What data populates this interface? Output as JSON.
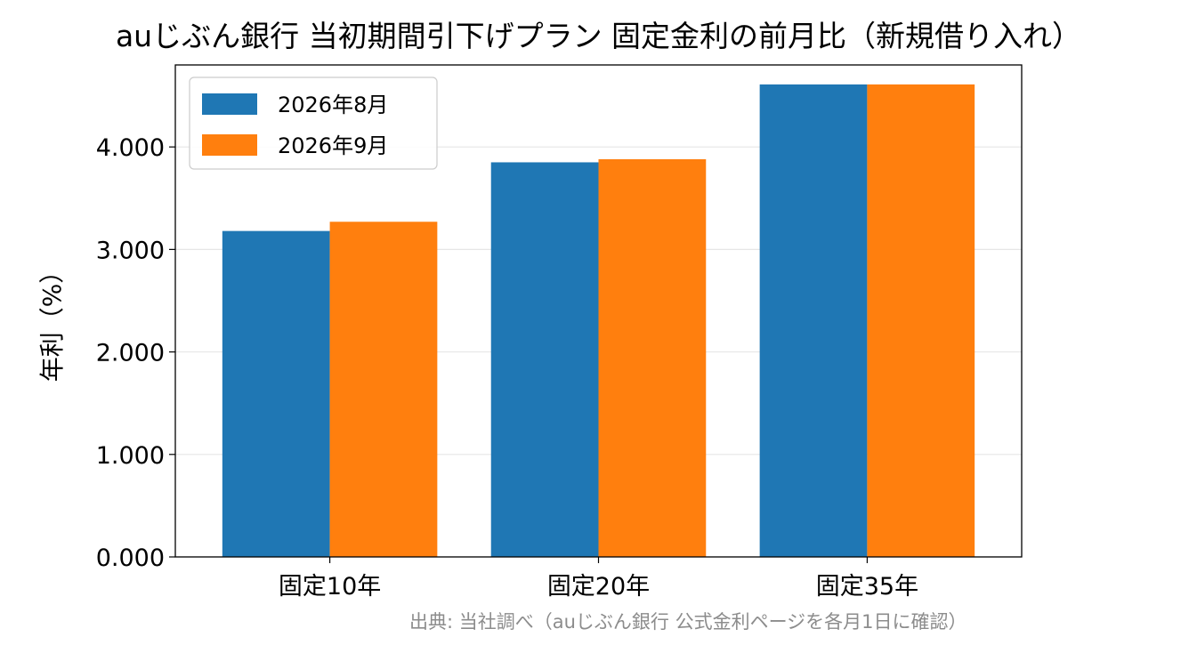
{
  "chart_data": {
    "type": "bar",
    "title": "auじぶん銀行 当初期間引下げプラン 固定金利の前月比（新規借り入れ）",
    "xlabel": "",
    "ylabel": "年利（%）",
    "categories": [
      "固定10年",
      "固定20年",
      "固定35年"
    ],
    "series": [
      {
        "name": "2026年8月",
        "color": "#1f77b4",
        "values": [
          3.18,
          3.85,
          4.61
        ]
      },
      {
        "name": "2026年9月",
        "color": "#ff7f0e",
        "values": [
          3.27,
          3.88,
          4.61
        ]
      }
    ],
    "ylim": [
      0,
      4.8
    ],
    "yticks": [
      "0.000",
      "1.000",
      "2.000",
      "3.000",
      "4.000"
    ],
    "grid": "horizontal",
    "legend_position": "top-left"
  },
  "source_note": "出典: 当社調べ（auじぶん銀行 公式金利ページを各月1日に確認）"
}
